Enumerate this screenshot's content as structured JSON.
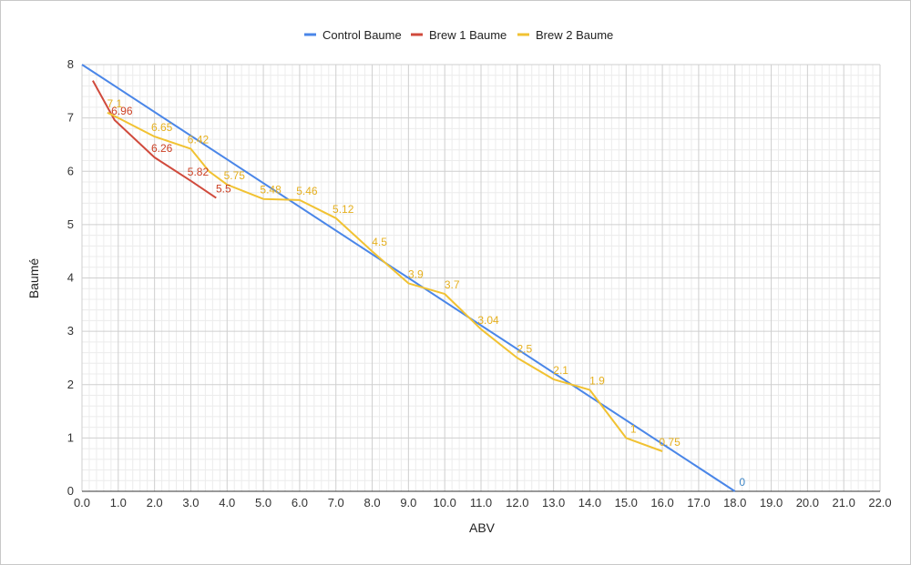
{
  "chart_data": {
    "type": "line",
    "xlabel": "ABV",
    "ylabel": "Baumé",
    "xlim": [
      0,
      22
    ],
    "ylim": [
      0,
      8
    ],
    "x_ticks": [
      "0.0",
      "1.0",
      "2.0",
      "3.0",
      "4.0",
      "5.0",
      "6.0",
      "7.0",
      "8.0",
      "9.0",
      "10.0",
      "11.0",
      "12.0",
      "13.0",
      "14.0",
      "15.0",
      "16.0",
      "17.0",
      "18.0",
      "19.0",
      "20.0",
      "21.0",
      "22.0"
    ],
    "y_ticks": [
      "0",
      "1",
      "2",
      "3",
      "4",
      "5",
      "6",
      "7",
      "8"
    ],
    "grid": true,
    "legend_position": "top",
    "series": [
      {
        "name": "Control Baume",
        "color": "#4a86e8",
        "x": [
          0,
          18
        ],
        "y": [
          8,
          0
        ],
        "labels": [
          {
            "x": 18,
            "y": 0,
            "text": "0"
          }
        ]
      },
      {
        "name": "Brew 1 Baume",
        "color": "#d04a3c",
        "x": [
          0.3,
          0.9,
          2.0,
          3.0,
          3.7
        ],
        "y": [
          7.7,
          6.96,
          6.26,
          5.82,
          5.5
        ],
        "labels": [
          {
            "x": 0.9,
            "y": 6.96,
            "text": "6.96"
          },
          {
            "x": 2.0,
            "y": 6.26,
            "text": "6.26"
          },
          {
            "x": 3.0,
            "y": 5.82,
            "text": "5.82"
          },
          {
            "x": 3.7,
            "y": 5.5,
            "text": "5.5"
          }
        ]
      },
      {
        "name": "Brew 2 Baume",
        "color": "#f1c232",
        "x": [
          0.7,
          1.0,
          2.0,
          3.0,
          3.5,
          4.0,
          5.0,
          6.0,
          7.0,
          8.0,
          9.0,
          10.0,
          11.0,
          12.0,
          13.0,
          14.0,
          15.0,
          16.0
        ],
        "y": [
          7.1,
          7.0,
          6.65,
          6.42,
          6.0,
          5.75,
          5.48,
          5.46,
          5.12,
          4.5,
          3.9,
          3.7,
          3.04,
          2.5,
          2.1,
          1.9,
          1.0,
          0.75
        ],
        "labels": [
          {
            "x": 0.7,
            "y": 7.1,
            "text": "7.1"
          },
          {
            "x": 2.0,
            "y": 6.65,
            "text": "6.65"
          },
          {
            "x": 3.0,
            "y": 6.42,
            "text": "6.42"
          },
          {
            "x": 4.0,
            "y": 5.75,
            "text": "5.75"
          },
          {
            "x": 5.0,
            "y": 5.48,
            "text": "5.48"
          },
          {
            "x": 6.0,
            "y": 5.46,
            "text": "5.46"
          },
          {
            "x": 7.0,
            "y": 5.12,
            "text": "5.12"
          },
          {
            "x": 8.0,
            "y": 4.5,
            "text": "4.5"
          },
          {
            "x": 9.0,
            "y": 3.9,
            "text": "3.9"
          },
          {
            "x": 10.0,
            "y": 3.7,
            "text": "3.7"
          },
          {
            "x": 11.0,
            "y": 3.04,
            "text": "3.04"
          },
          {
            "x": 12.0,
            "y": 2.5,
            "text": "2.5"
          },
          {
            "x": 13.0,
            "y": 2.1,
            "text": "2.1"
          },
          {
            "x": 14.0,
            "y": 1.9,
            "text": "1.9"
          },
          {
            "x": 15.0,
            "y": 1.0,
            "text": "1"
          },
          {
            "x": 16.0,
            "y": 0.75,
            "text": "0.75"
          }
        ]
      }
    ]
  }
}
